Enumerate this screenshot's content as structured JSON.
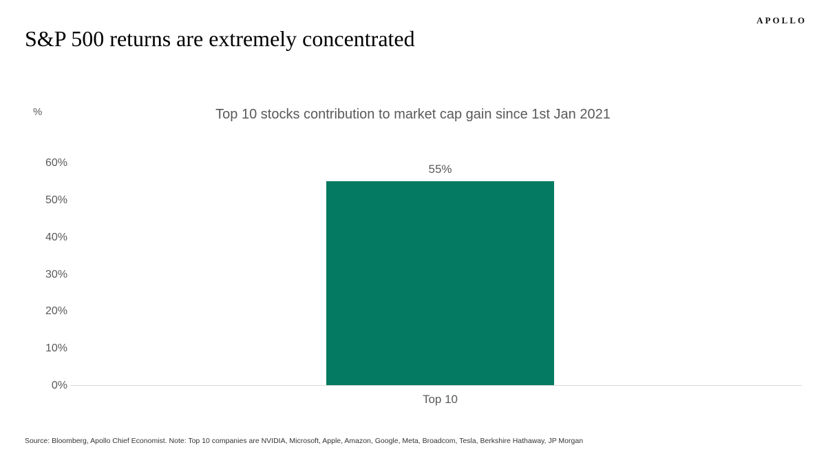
{
  "brand": {
    "logo": "APOLLO"
  },
  "page_title": "S&P 500 returns are extremely concentrated",
  "chart_data": {
    "type": "bar",
    "title": "Top 10 stocks contribution to market cap gain since 1st Jan 2021",
    "unit_label": "%",
    "categories": [
      "Top 10"
    ],
    "values": [
      55
    ],
    "value_labels": [
      "55%"
    ],
    "ylim": [
      0,
      60
    ],
    "ytick_labels": [
      "60%",
      "50%",
      "40%",
      "30%",
      "20%",
      "10%",
      "0%"
    ],
    "bar_color": "#047a62",
    "axis_line_color": "#d9d9d9",
    "grid": false,
    "legend": "none"
  },
  "footer": {
    "source_note": "Source: Bloomberg, Apollo Chief Economist. Note: Top 10 companies are NVIDIA, Microsoft, Apple, Amazon, Google, Meta, Broadcom, Tesla, Berkshire Hathaway, JP Morgan"
  }
}
